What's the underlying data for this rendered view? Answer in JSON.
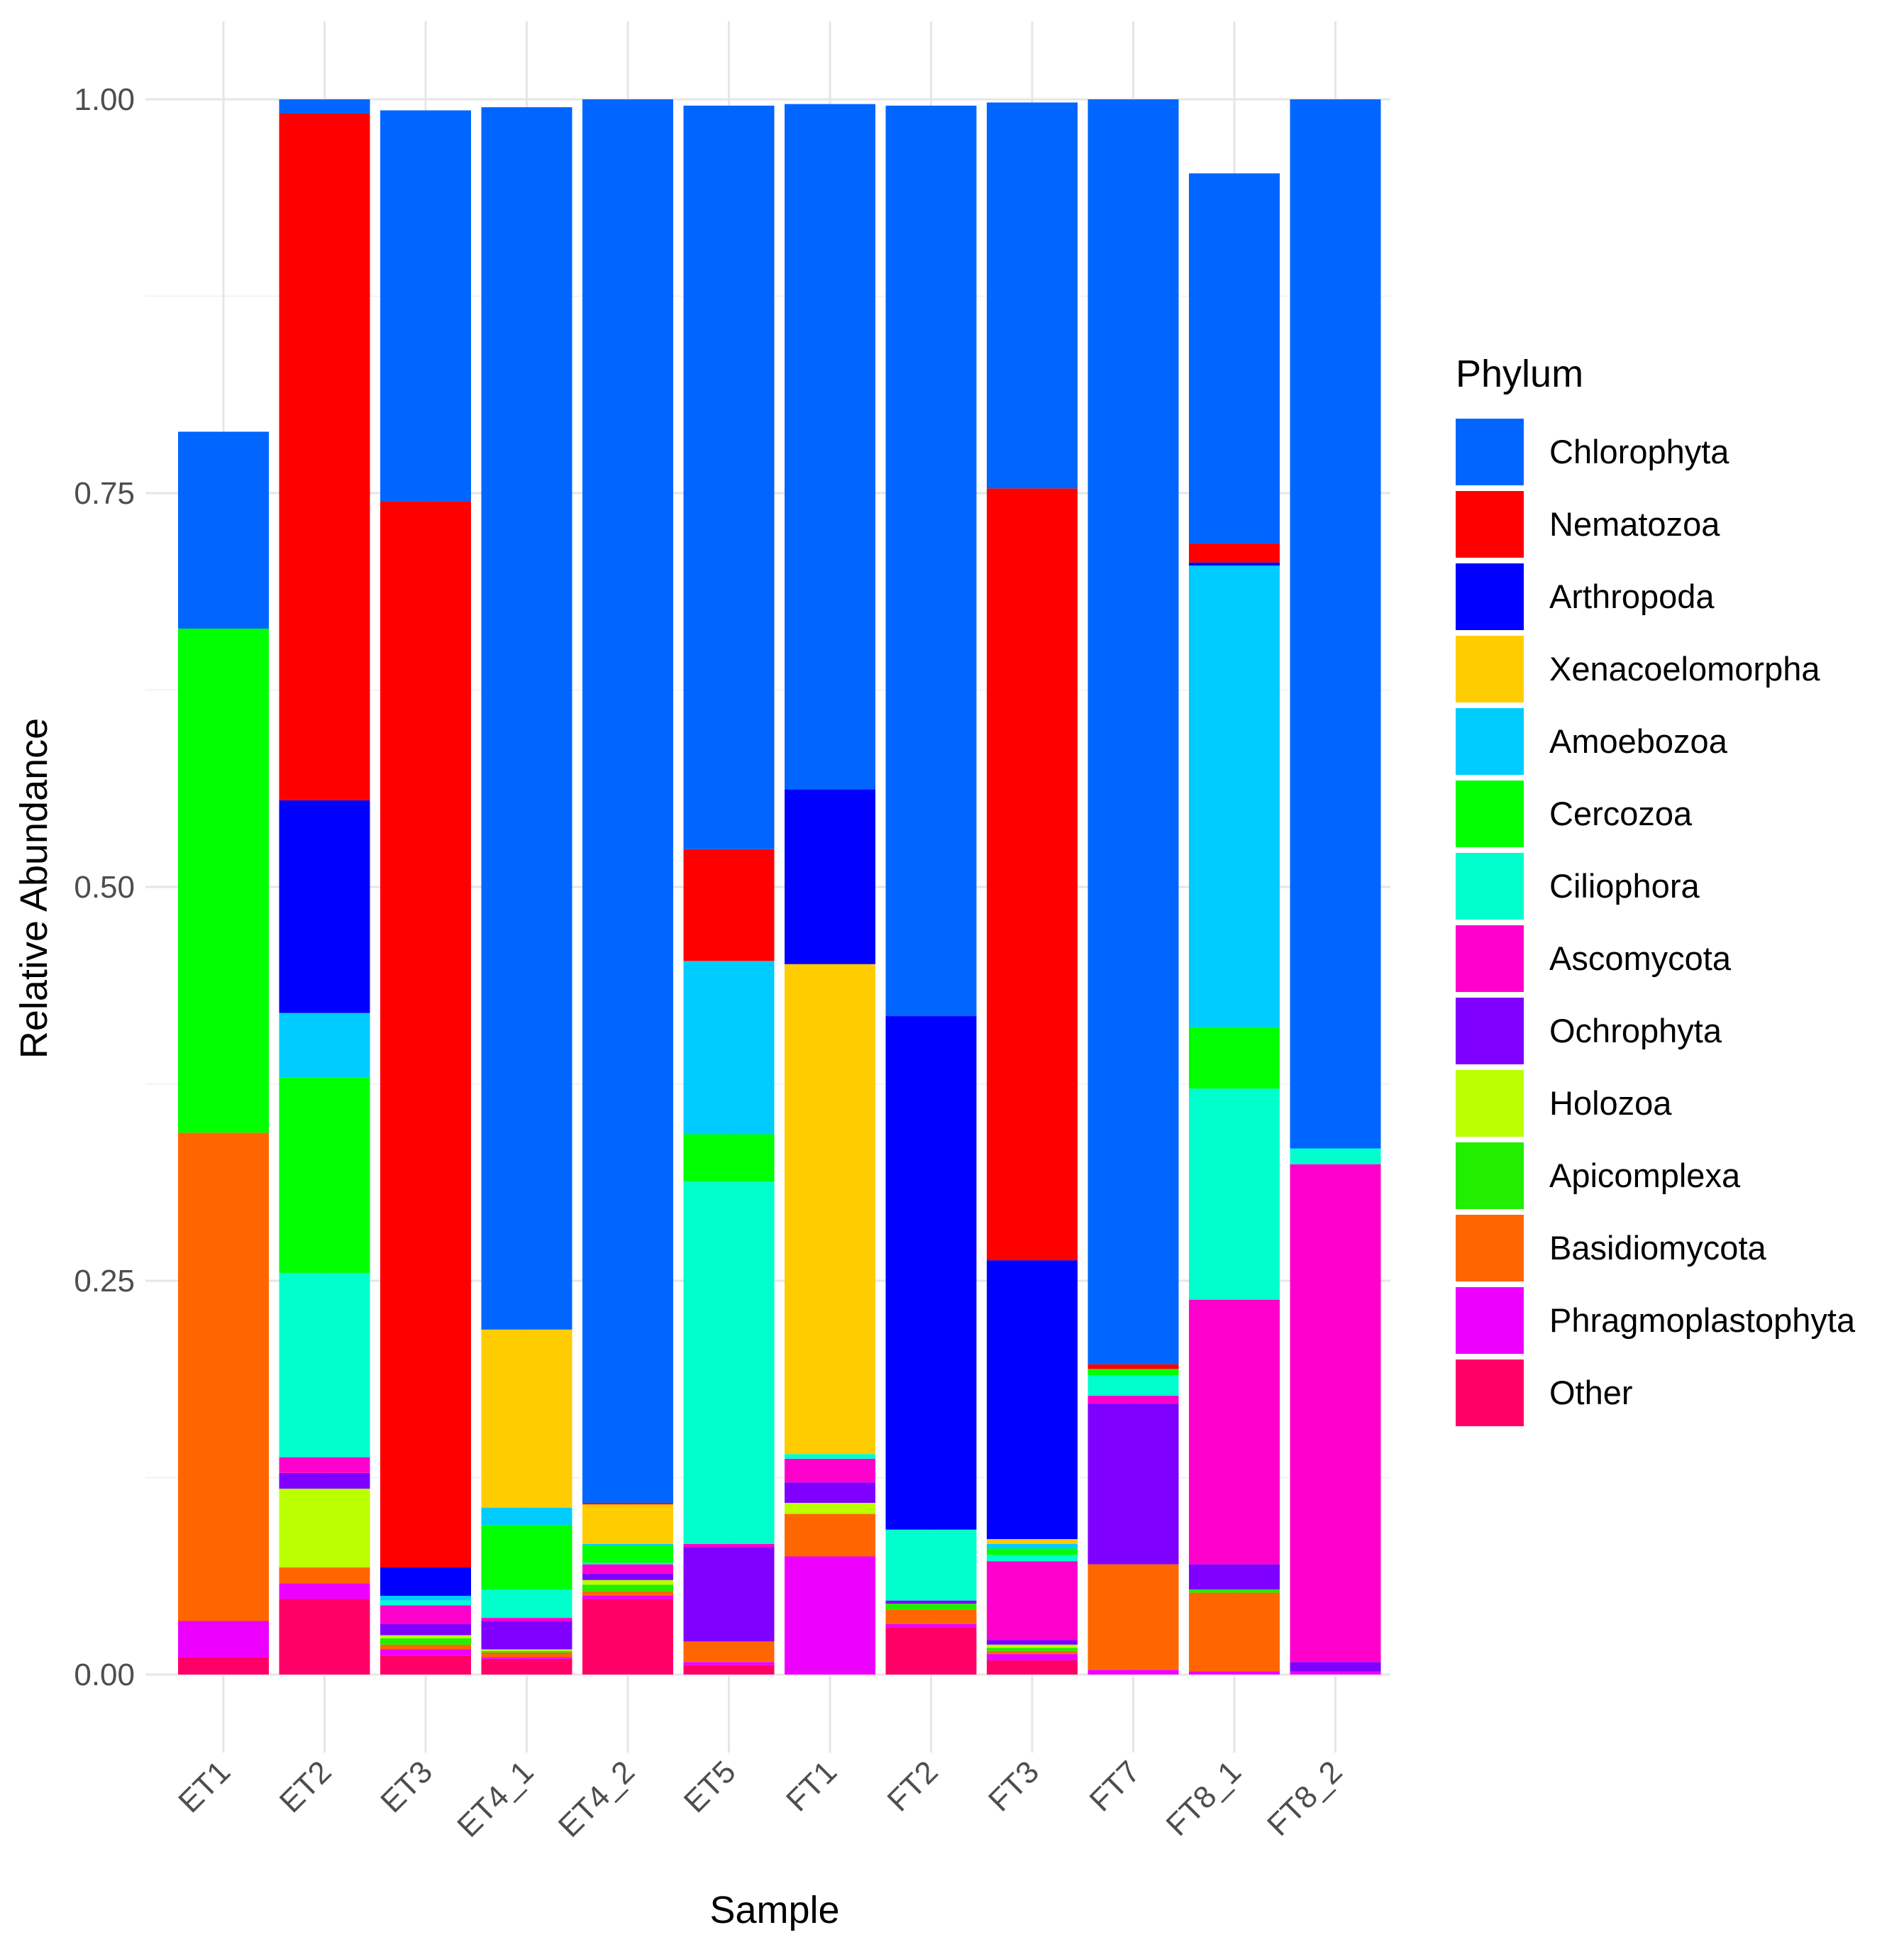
{
  "chart_data": {
    "type": "bar",
    "stacked": true,
    "title": "",
    "xlabel": "Sample",
    "ylabel": "Relative Abundance",
    "ylim": [
      0,
      1
    ],
    "y_ticks": [
      "0.00",
      "0.25",
      "0.50",
      "0.75",
      "1.00"
    ],
    "grid": true,
    "legend": {
      "title": "Phylum",
      "position": "right"
    },
    "categories": [
      "ET1",
      "ET2",
      "ET3",
      "ET4_1",
      "ET4_2",
      "ET5",
      "FT1",
      "FT2",
      "FT3",
      "FT7",
      "FT8_1",
      "FT8_2"
    ],
    "series": [
      {
        "name": "Other",
        "color": "#FF0066",
        "values": [
          0.011,
          0.048,
          0.012,
          0.01,
          0.048,
          0.006,
          0.0,
          0.03,
          0.009,
          0.0,
          0.0,
          0.0
        ]
      },
      {
        "name": "Phragmoplastophyta",
        "color": "#EE00FF",
        "values": [
          0.023,
          0.01,
          0.004,
          0.001,
          0.002,
          0.002,
          0.075,
          0.002,
          0.004,
          0.003,
          0.002,
          0.002
        ]
      },
      {
        "name": "Basidiomycota",
        "color": "#FF6600",
        "values": [
          0.31,
          0.01,
          0.003,
          0.003,
          0.003,
          0.013,
          0.027,
          0.009,
          0.002,
          0.067,
          0.05,
          0.0
        ]
      },
      {
        "name": "Apicomplexa",
        "color": "#22EE00",
        "values": [
          0.0,
          0.0,
          0.004,
          0.001,
          0.004,
          0.0,
          0.0,
          0.004,
          0.002,
          0.0,
          0.002,
          0.0
        ]
      },
      {
        "name": "Holozoa",
        "color": "#BBFF00",
        "values": [
          0.0,
          0.05,
          0.002,
          0.001,
          0.003,
          0.0,
          0.007,
          0.0,
          0.002,
          0.0,
          0.0,
          0.0
        ]
      },
      {
        "name": "Ochrophyta",
        "color": "#8000FF",
        "values": [
          0.0,
          0.01,
          0.007,
          0.018,
          0.004,
          0.06,
          0.013,
          0.002,
          0.003,
          0.102,
          0.016,
          0.006
        ]
      },
      {
        "name": "Ascomycota",
        "color": "#FF00CC",
        "values": [
          0.0,
          0.01,
          0.012,
          0.002,
          0.006,
          0.002,
          0.015,
          0.0,
          0.05,
          0.005,
          0.168,
          0.316
        ]
      },
      {
        "name": "Ciliophora",
        "color": "#00FFCC",
        "values": [
          0.0,
          0.117,
          0.003,
          0.018,
          0.001,
          0.23,
          0.003,
          0.045,
          0.004,
          0.013,
          0.134,
          0.01
        ]
      },
      {
        "name": "Cercozoa",
        "color": "#00FF00",
        "values": [
          0.32,
          0.124,
          0.0,
          0.041,
          0.011,
          0.03,
          0.0,
          0.0,
          0.004,
          0.004,
          0.039,
          0.0
        ]
      },
      {
        "name": "Amoebozoa",
        "color": "#00CCFF",
        "values": [
          0.0,
          0.041,
          0.003,
          0.011,
          0.001,
          0.11,
          0.0,
          0.0,
          0.003,
          0.0,
          0.293,
          0.0
        ]
      },
      {
        "name": "Xenacoelomorpha",
        "color": "#FFCC00",
        "values": [
          0.0,
          0.0,
          0.0,
          0.113,
          0.025,
          0.0,
          0.311,
          0.0,
          0.003,
          0.0,
          0.0,
          0.0
        ]
      },
      {
        "name": "Arthropoda",
        "color": "#0000FF",
        "values": [
          0.0,
          0.135,
          0.018,
          0.0,
          0.0,
          0.0,
          0.111,
          0.326,
          0.177,
          0.0,
          0.002,
          0.0
        ]
      },
      {
        "name": "Nematozoa",
        "color": "#FF0000",
        "values": [
          0.0,
          0.436,
          0.677,
          0.0,
          0.001,
          0.071,
          0.0,
          0.0,
          0.49,
          0.003,
          0.012,
          0.0
        ]
      },
      {
        "name": "Chlorophyta",
        "color": "#0066FF",
        "values": [
          0.125,
          0.009,
          0.248,
          0.776,
          0.891,
          0.472,
          0.435,
          0.578,
          0.245,
          0.803,
          0.235,
          0.666
        ]
      }
    ],
    "legend_order": [
      "Chlorophyta",
      "Nematozoa",
      "Arthropoda",
      "Xenacoelomorpha",
      "Amoebozoa",
      "Cercozoa",
      "Ciliophora",
      "Ascomycota",
      "Ochrophyta",
      "Holozoa",
      "Apicomplexa",
      "Basidiomycota",
      "Phragmoplastophyta",
      "Other"
    ]
  }
}
